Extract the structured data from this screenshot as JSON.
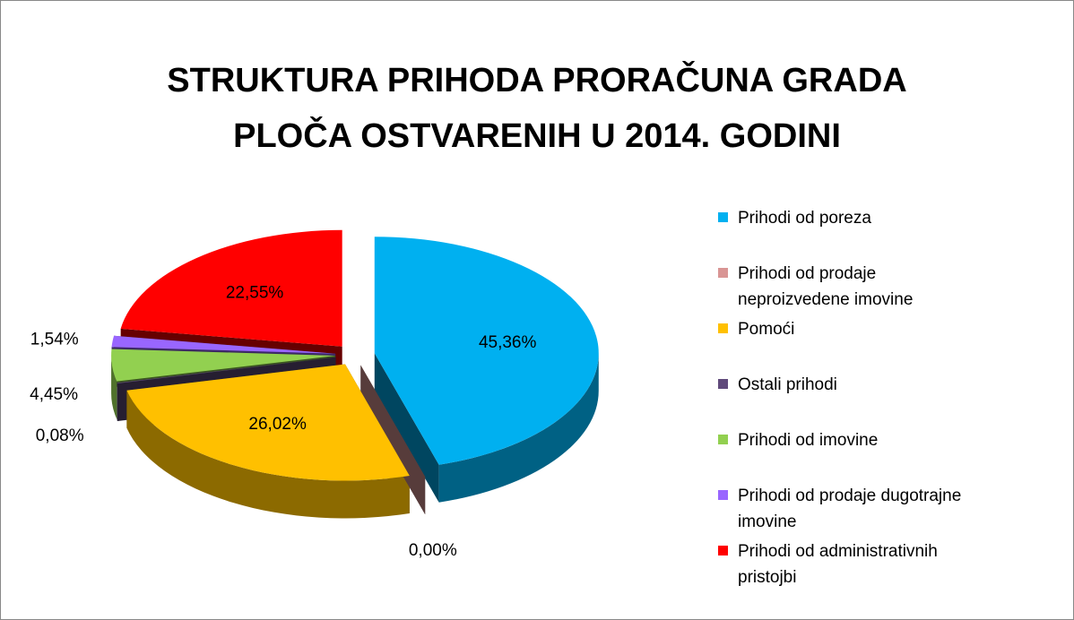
{
  "chart_data": {
    "type": "pie",
    "title": "STRUKTURA PRIHODA PRORAČUNA GRADA PLOČA OSTVARENIH U 2014. GODINI",
    "categories": [
      "Prihodi od poreza",
      "Prihodi od prodaje neproizvedene imovine",
      "Pomoći",
      "Ostali prihodi",
      "Prihodi od imovine",
      "Prihodi od prodaje dugotrajne imovine",
      "Prihodi od administrativnih pristojbi"
    ],
    "values": [
      45.36,
      0.0,
      26.02,
      0.08,
      4.45,
      1.54,
      22.55
    ],
    "value_labels": [
      "45,36%",
      "0,00%",
      "26,02%",
      "0,08%",
      "4,45%",
      "1,54%",
      "22,55%"
    ],
    "colors": [
      "#00b0f0",
      "#d99594",
      "#ffc000",
      "#604a7b",
      "#92d050",
      "#9966ff",
      "#ff0000"
    ],
    "legend": "right"
  }
}
